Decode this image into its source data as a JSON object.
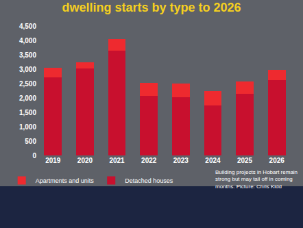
{
  "chart_data": {
    "type": "bar",
    "title": "dwelling starts by type to 2026",
    "categories": [
      "2019",
      "2020",
      "2021",
      "2022",
      "2023",
      "2024",
      "2025",
      "2026"
    ],
    "series": [
      {
        "name": "Detached houses",
        "color": "#c8102e",
        "values": [
          2720,
          3020,
          3650,
          2060,
          2030,
          1750,
          2150,
          2620
        ]
      },
      {
        "name": "Apartments and units",
        "color": "#ee2a2f",
        "values": [
          330,
          210,
          400,
          470,
          460,
          480,
          410,
          360
        ]
      }
    ],
    "ylim": [
      0,
      4500
    ],
    "yticks": [
      0,
      500,
      {
        "value": 1000,
        "label": "1,000"
      },
      {
        "value": 1500,
        "label": "1,500"
      },
      {
        "value": 2000,
        "label": "2,000"
      },
      {
        "value": 2500,
        "label": "2,500"
      },
      {
        "value": 3000,
        "label": "3,000"
      },
      {
        "value": 3500,
        "label": "3,500"
      },
      {
        "value": 4000,
        "label": "4,000"
      },
      {
        "value": 4500,
        "label": "4,500"
      }
    ],
    "stacked": true,
    "grid": false,
    "legend": "bottom left",
    "annotations": [
      "Building projects in Hobart remain strong but may tail off in coming months. Picture: Chris Kidd"
    ]
  }
}
